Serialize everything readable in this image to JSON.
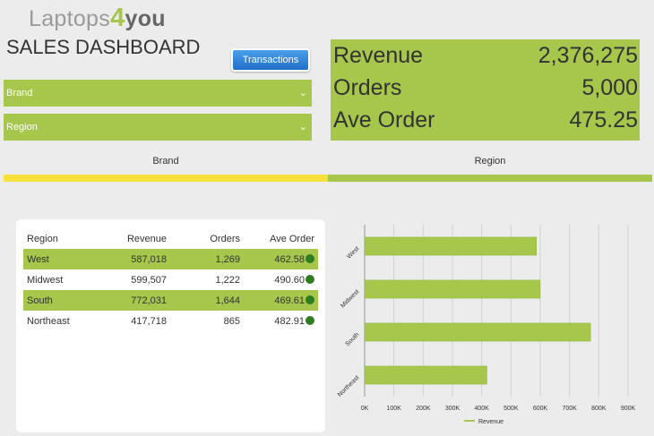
{
  "header": {
    "logo_prefix": "Laptops",
    "logo_num": "4",
    "logo_suffix": "you",
    "title": "SALES DASHBOARD",
    "transactions_label": "Transactions"
  },
  "filters": {
    "brand_label": "Brand",
    "region_label": "Region"
  },
  "kpi": [
    {
      "label": "Revenue",
      "value": "2,376,275"
    },
    {
      "label": "Orders",
      "value": "5,000"
    },
    {
      "label": "Ave Order",
      "value": "475.25"
    }
  ],
  "tabs": {
    "brand": "Brand",
    "region": "Region"
  },
  "colors": {
    "accent": "#a6c64c",
    "tab_active": "#f6e13b",
    "status_dot": "#2e7d1f",
    "button": "#1f6fc9"
  },
  "table": {
    "headers": [
      "Region",
      "Revenue",
      "Orders",
      "Ave Order"
    ],
    "rows": [
      {
        "region": "West",
        "revenue": "587,018",
        "orders": "1,269",
        "ave": "462.58"
      },
      {
        "region": "Midwest",
        "revenue": "599,507",
        "orders": "1,222",
        "ave": "490.60"
      },
      {
        "region": "South",
        "revenue": "772,031",
        "orders": "1,644",
        "ave": "469.61"
      },
      {
        "region": "Northeast",
        "revenue": "417,718",
        "orders": "865",
        "ave": "482.91"
      }
    ]
  },
  "chart_data": {
    "type": "bar",
    "orientation": "horizontal",
    "categories": [
      "West",
      "Midwest",
      "South",
      "Northeast"
    ],
    "series": [
      {
        "name": "Revenue",
        "values": [
          587018,
          599507,
          772031,
          417718
        ]
      }
    ],
    "xlim": [
      0,
      900000
    ],
    "xticks": [
      "0K",
      "100K",
      "200K",
      "300K",
      "400K",
      "500K",
      "600K",
      "700K",
      "800K",
      "900K"
    ],
    "grid": true,
    "legend": "bottom"
  }
}
